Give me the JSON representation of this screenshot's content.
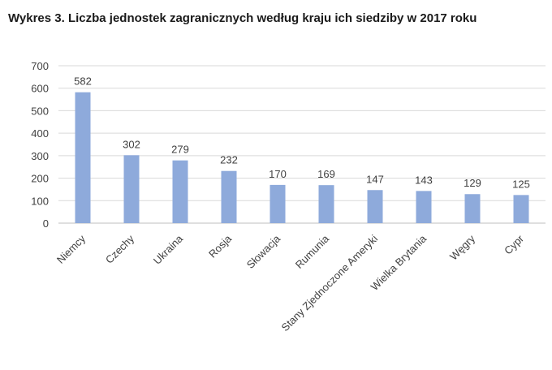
{
  "chart_data": {
    "type": "bar",
    "title": "Wykres 3. Liczba jednostek zagranicznych według kraju ich siedziby w 2017 roku",
    "categories": [
      "Niemcy",
      "Czechy",
      "Ukraina",
      "Rosja",
      "Słowacja",
      "Rumunia",
      "Stany Zjednoczone Ameryki",
      "Wielka Brytania",
      "Węgry",
      "Cypr"
    ],
    "values": [
      582,
      302,
      279,
      232,
      170,
      169,
      147,
      143,
      129,
      125
    ],
    "data_labels": [
      "582",
      "302",
      "279",
      "232",
      "170",
      "169",
      "147",
      "143",
      "129",
      "125"
    ],
    "xlabel": "",
    "ylabel": "",
    "ylim": [
      0,
      700
    ],
    "yticks": [
      0,
      100,
      200,
      300,
      400,
      500,
      600,
      700
    ],
    "grid": true,
    "legend": "none",
    "colors": {
      "bar": "#8eaadb",
      "grid": "#d9d9d9",
      "axis": "#bfbfbf",
      "text": "#404040"
    }
  }
}
